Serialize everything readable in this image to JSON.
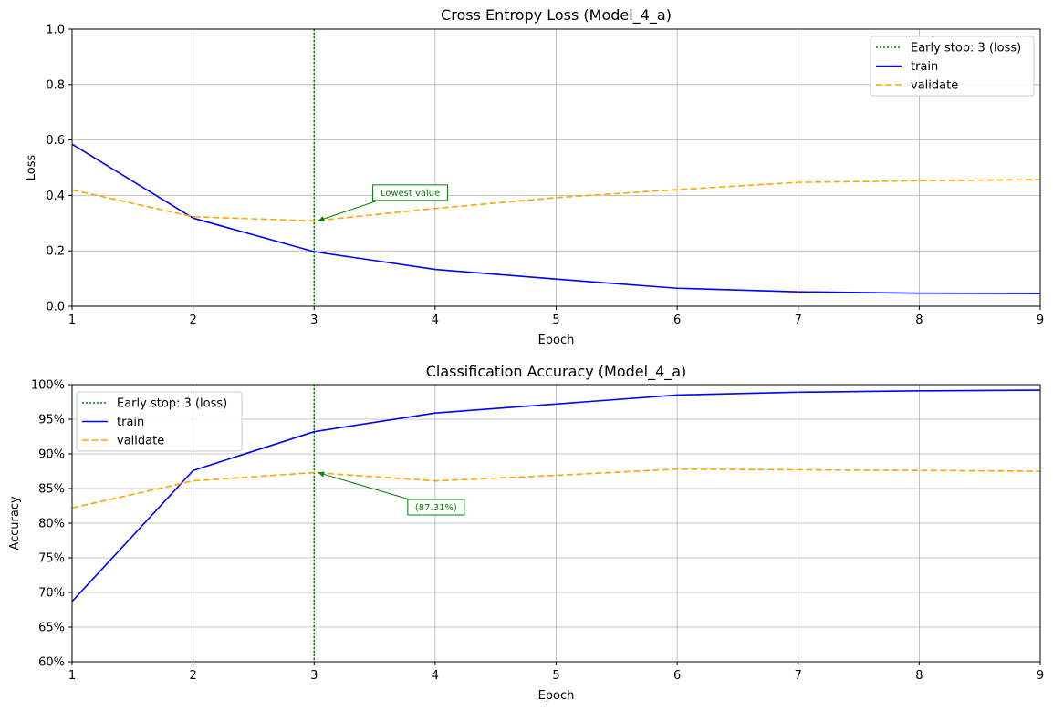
{
  "colors": {
    "train": "#0000ff",
    "validate": "#ffa500",
    "early_stop": "#008000",
    "grid": "#b0b0b0",
    "annotation": "#008000"
  },
  "chart_data": [
    {
      "type": "line",
      "title": "Cross Entropy Loss (Model_4_a)",
      "xlabel": "Epoch",
      "ylabel": "Loss",
      "xlim": [
        1,
        9
      ],
      "ylim": [
        0,
        1
      ],
      "x": [
        1,
        2,
        3,
        4,
        5,
        6,
        7,
        8,
        9
      ],
      "xticks": [
        "1",
        "2",
        "3",
        "4",
        "5",
        "6",
        "7",
        "8",
        "9"
      ],
      "yticks": [
        0.0,
        0.2,
        0.4,
        0.6,
        0.8,
        1.0
      ],
      "ytick_labels": [
        "0.0",
        "0.2",
        "0.4",
        "0.6",
        "0.8",
        "1.0"
      ],
      "grid": true,
      "legend_position": "upper-right",
      "early_stop": {
        "x": 3,
        "label": "Early stop: 3 (loss)",
        "style": "dotted"
      },
      "series": [
        {
          "name": "train",
          "style": "solid",
          "values": [
            0.585,
            0.318,
            0.197,
            0.133,
            0.098,
            0.065,
            0.052,
            0.047,
            0.046
          ]
        },
        {
          "name": "validate",
          "style": "dashed",
          "values": [
            0.42,
            0.323,
            0.308,
            0.353,
            0.392,
            0.421,
            0.447,
            0.453,
            0.457
          ]
        }
      ],
      "annotation": {
        "text": "Lowest value",
        "x": 3,
        "y": 0.308,
        "text_x": 3.5,
        "text_y": 0.41
      }
    },
    {
      "type": "line",
      "title": "Classification Accuracy (Model_4_a)",
      "xlabel": "Epoch",
      "ylabel": "Accuracy",
      "xlim": [
        1,
        9
      ],
      "ylim": [
        0.6,
        1.0
      ],
      "x": [
        1,
        2,
        3,
        4,
        5,
        6,
        7,
        8,
        9
      ],
      "xticks": [
        "1",
        "2",
        "3",
        "4",
        "5",
        "6",
        "7",
        "8",
        "9"
      ],
      "yticks": [
        0.6,
        0.65,
        0.7,
        0.75,
        0.8,
        0.85,
        0.9,
        0.95,
        1.0
      ],
      "ytick_labels": [
        "60%",
        "65%",
        "70%",
        "75%",
        "80%",
        "85%",
        "90%",
        "95%",
        "100%"
      ],
      "grid": true,
      "legend_position": "upper-left",
      "early_stop": {
        "x": 3,
        "label": "Early stop: 3 (loss)",
        "style": "dotted"
      },
      "series": [
        {
          "name": "train",
          "style": "solid",
          "values": [
            0.687,
            0.876,
            0.932,
            0.959,
            0.972,
            0.985,
            0.989,
            0.991,
            0.992
          ]
        },
        {
          "name": "validate",
          "style": "dashed",
          "values": [
            0.822,
            0.861,
            0.873,
            0.861,
            0.869,
            0.878,
            0.877,
            0.876,
            0.875
          ]
        }
      ],
      "annotation": {
        "text": "(87.31%)",
        "x": 3,
        "y": 0.8731,
        "text_x": 4.0,
        "text_y": 0.823
      }
    }
  ]
}
